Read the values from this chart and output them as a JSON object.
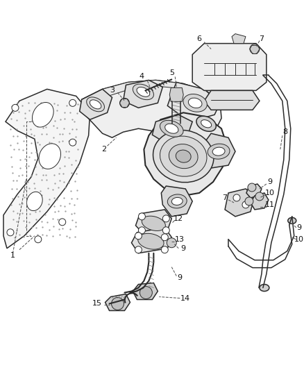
{
  "bg_color": "#ffffff",
  "line_color": "#2a2a2a",
  "label_color": "#111111",
  "leader_color": "#555555",
  "figsize": [
    4.38,
    5.33
  ],
  "dpi": 100,
  "lw_main": 1.1,
  "lw_thin": 0.7,
  "lw_thick": 1.5,
  "label_fs": 7.5
}
